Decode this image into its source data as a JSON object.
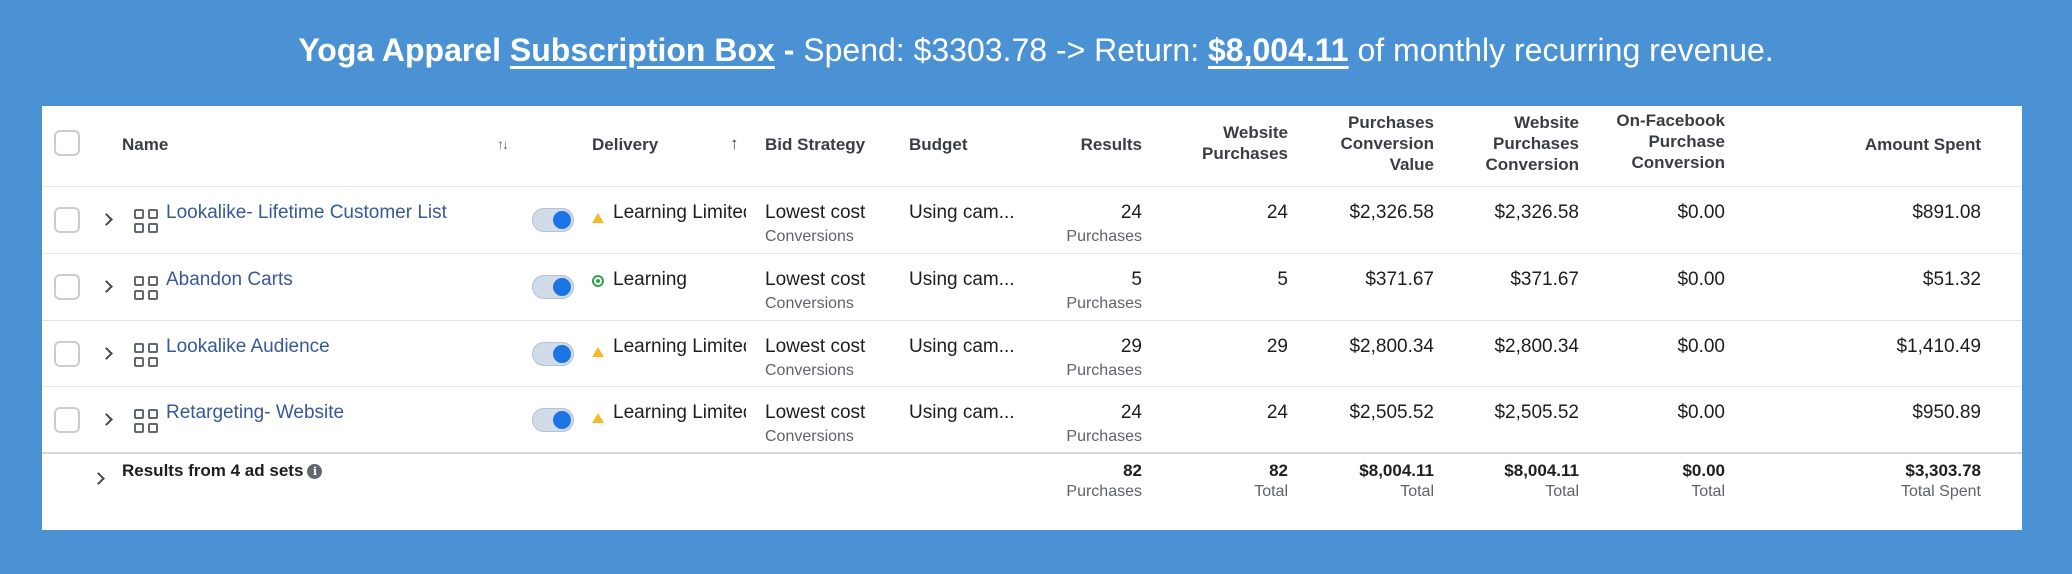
{
  "headline": {
    "part1": "Yoga Apparel ",
    "part2": "Subscription Box",
    "part3": " - ",
    "part4": "Spend: $3303.78 -> Return: ",
    "part5": "$8,004.11",
    "part6": " of monthly recurring revenue."
  },
  "columns": {
    "name": "Name",
    "sort_icon": "↑↓",
    "delivery": "Delivery",
    "delivery_sort": "↑",
    "bid_strategy": "Bid Strategy",
    "budget": "Budget",
    "results": "Results",
    "website_purchases": [
      "Website",
      "Purchases"
    ],
    "purchases_conversion_value": [
      "Purchases",
      "Conversion",
      "Value"
    ],
    "website_purchases_conversion": [
      "Website",
      "Purchases",
      "Conversion"
    ],
    "on_facebook_purchase_conversion": [
      "On-Facebook",
      "Purchase",
      "Conversion"
    ],
    "amount_spent": "Amount Spent"
  },
  "rows": [
    {
      "name": "Lookalike- Lifetime Customer List",
      "delivery": "Learning Limited",
      "delivery_status": "warning",
      "bid": "Lowest cost",
      "bid_sub": "Conversions",
      "budget": "Using cam...",
      "results": "24",
      "results_sub": "Purchases",
      "website_purchases": "24",
      "conv_value": "$2,326.58",
      "web_conv": "$2,326.58",
      "fb_conv": "$0.00",
      "spent": "$891.08"
    },
    {
      "name": "Abandon Carts",
      "delivery": "Learning",
      "delivery_status": "active",
      "bid": "Lowest cost",
      "bid_sub": "Conversions",
      "budget": "Using cam...",
      "results": "5",
      "results_sub": "Purchases",
      "website_purchases": "5",
      "conv_value": "$371.67",
      "web_conv": "$371.67",
      "fb_conv": "$0.00",
      "spent": "$51.32"
    },
    {
      "name": "Lookalike Audience",
      "delivery": "Learning Limited",
      "delivery_status": "warning",
      "bid": "Lowest cost",
      "bid_sub": "Conversions",
      "budget": "Using cam...",
      "results": "29",
      "results_sub": "Purchases",
      "website_purchases": "29",
      "conv_value": "$2,800.34",
      "web_conv": "$2,800.34",
      "fb_conv": "$0.00",
      "spent": "$1,410.49"
    },
    {
      "name": "Retargeting- Website",
      "delivery": "Learning Limited",
      "delivery_status": "warning",
      "bid": "Lowest cost",
      "bid_sub": "Conversions",
      "budget": "Using cam...",
      "results": "24",
      "results_sub": "Purchases",
      "website_purchases": "24",
      "conv_value": "$2,505.52",
      "web_conv": "$2,505.52",
      "fb_conv": "$0.00",
      "spent": "$950.89"
    }
  ],
  "footer": {
    "label": "Results from 4 ad sets",
    "info_icon": "i",
    "results": "82",
    "results_sub": "Purchases",
    "website_purchases": "82",
    "website_purchases_sub": "Total",
    "conv_value": "$8,004.11",
    "conv_value_sub": "Total",
    "web_conv": "$8,004.11",
    "web_conv_sub": "Total",
    "fb_conv": "$0.00",
    "fb_conv_sub": "Total",
    "spent": "$3,303.78",
    "spent_sub": "Total Spent"
  },
  "colors": {
    "background": "#4a92d4",
    "link": "#385898",
    "toggle_on": "#1b74e4",
    "warning": "#f7b928",
    "active": "#31a24c"
  }
}
